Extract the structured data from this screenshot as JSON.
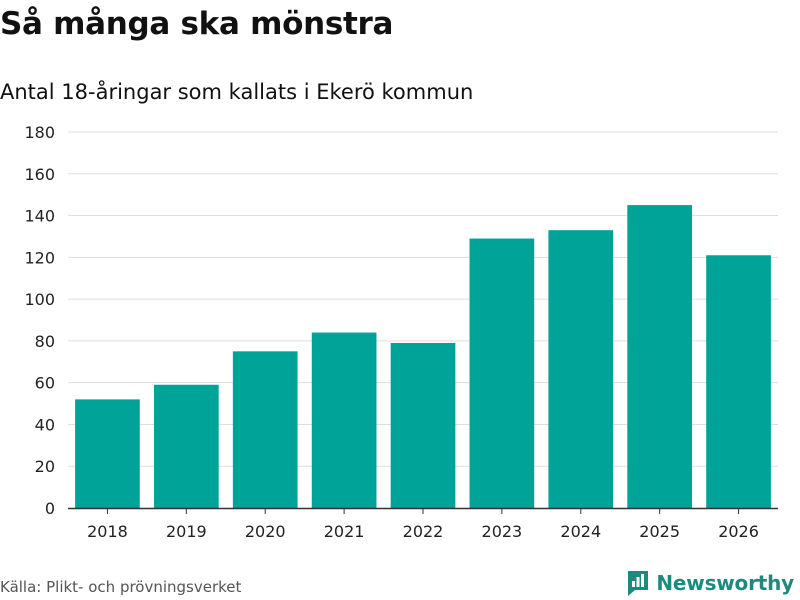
{
  "header": {
    "title": "Så många ska mönstra",
    "subtitle": "Antal 18-åringar som kallats i Ekerö kommun"
  },
  "footer": {
    "source": "Källa: Plikt- och prövningsverket",
    "brand": "Newsworthy",
    "brand_icon": "bar-chart-icon"
  },
  "colors": {
    "bar": "#00a397",
    "grid": "#dddddd",
    "axis": "#333333",
    "brand": "#1d8a80"
  },
  "chart_data": {
    "type": "bar",
    "title": "Så många ska mönstra",
    "subtitle": "Antal 18-åringar som kallats i Ekerö kommun",
    "xlabel": "",
    "ylabel": "",
    "categories": [
      "2018",
      "2019",
      "2020",
      "2021",
      "2022",
      "2023",
      "2024",
      "2025",
      "2026"
    ],
    "values": [
      52,
      59,
      75,
      84,
      79,
      129,
      133,
      145,
      121
    ],
    "ylim": [
      0,
      180
    ],
    "yticks": [
      0,
      20,
      40,
      60,
      80,
      100,
      120,
      140,
      160,
      180
    ],
    "grid": true,
    "legend": "none"
  }
}
